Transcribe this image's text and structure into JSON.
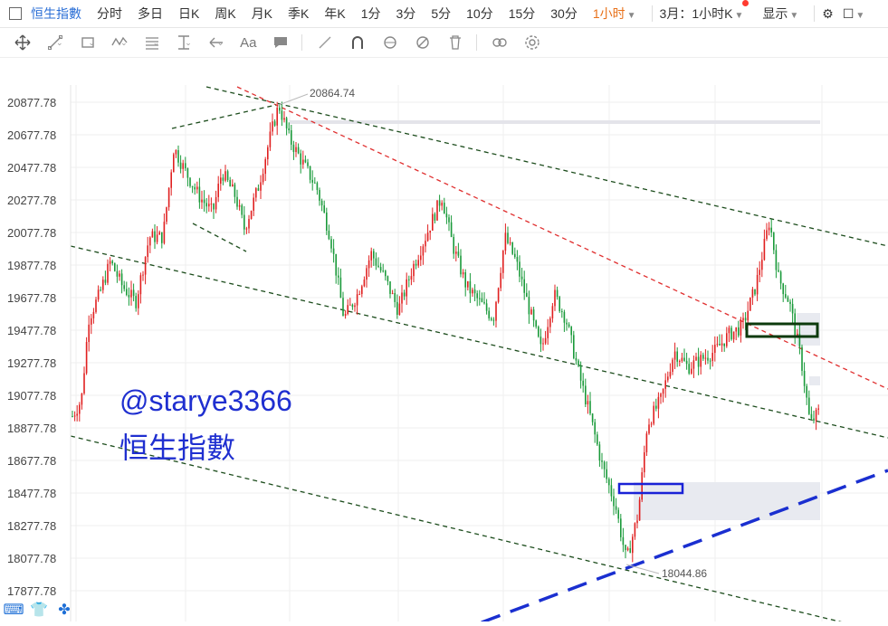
{
  "topbar": {
    "title": "恒生指數",
    "tabs": [
      "分时",
      "多日",
      "日K",
      "周K",
      "月K",
      "季K",
      "年K",
      "1分",
      "3分",
      "5分",
      "10分",
      "15分",
      "30分"
    ],
    "active_tab": "1小时",
    "contract": "3月：1小时K",
    "display": "显示"
  },
  "chart_data": {
    "type": "candlestick",
    "y_ticks": [
      "20877.78",
      "20677.78",
      "20477.78",
      "20277.78",
      "20077.78",
      "19877.78",
      "19677.78",
      "19477.78",
      "19277.78",
      "19077.78",
      "18877.78",
      "18677.78",
      "18477.78",
      "18277.78",
      "18077.78",
      "17877.78"
    ],
    "ylim": [
      17800,
      20960
    ],
    "annotations": {
      "high": "20864.74",
      "low": "18044.86"
    },
    "watermark": [
      "@starye3366",
      "恒生指數"
    ],
    "colors": {
      "up": "#e02020",
      "down": "#1a9a3a",
      "grid": "#efefef",
      "channel": "#1d4d1d",
      "trend_red": "#e03030",
      "trend_blue": "#1a2fd0"
    }
  }
}
